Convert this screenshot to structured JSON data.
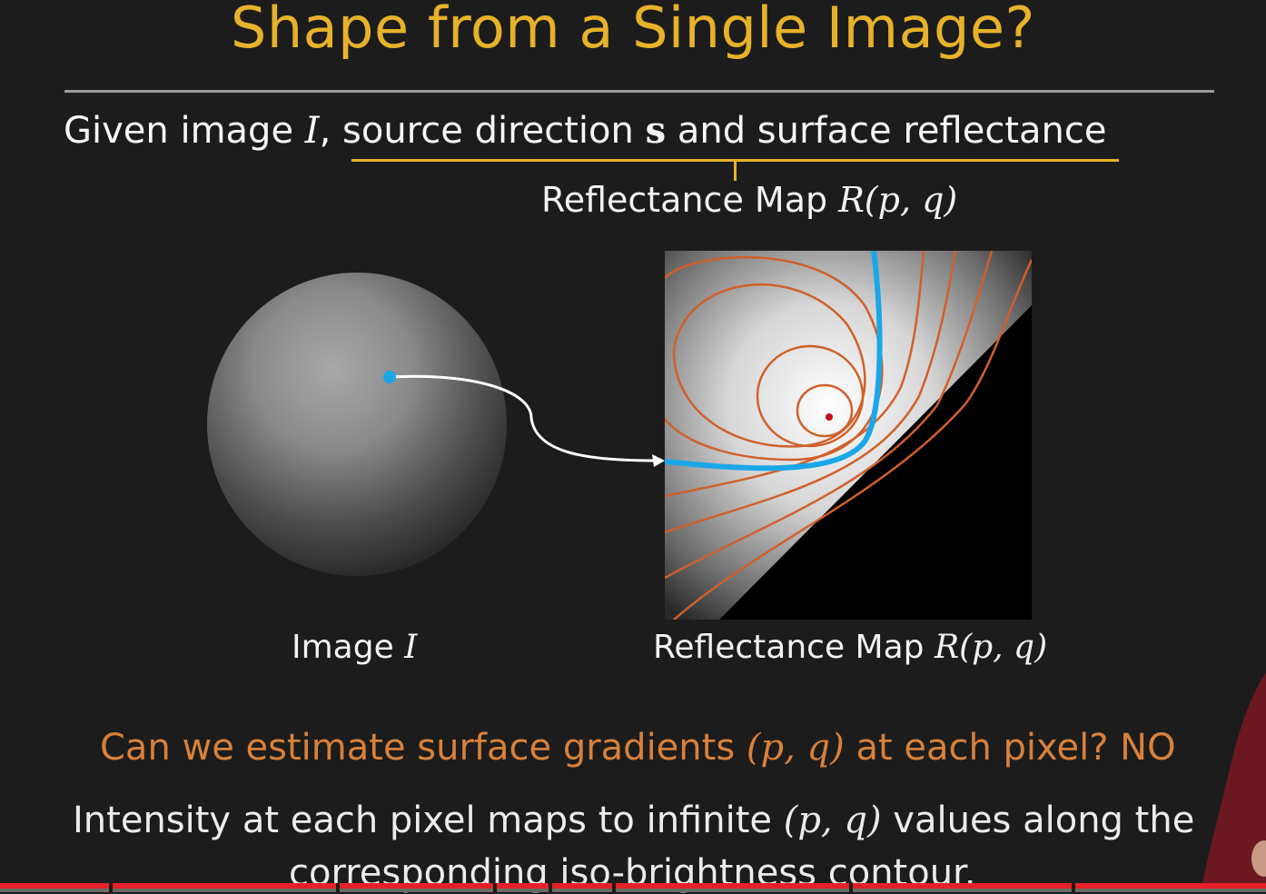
{
  "slide": {
    "title": "Shape from a Single Image?",
    "given": {
      "text_a": "Given image ",
      "var_I": "I",
      "comma": ", ",
      "text_b": "source direction ",
      "var_s": "s",
      "text_c": " and surface reflectance"
    },
    "reflectance_top": {
      "label": "Reflectance Map ",
      "expr": "R(p, q)"
    },
    "caption_image": {
      "label": "Image ",
      "var": "I"
    },
    "caption_map": {
      "label": "Reflectance Map ",
      "expr": "R(p, q)"
    },
    "question": {
      "text_a": "Can we estimate surface gradients ",
      "expr": "(p, q)",
      "text_b": " at each pixel? NO"
    },
    "intensity": {
      "text_a": "Intensity at each pixel maps to infinite ",
      "expr": "(p, q)",
      "text_b": " values along the",
      "line2": "corresponding iso-brightness contour."
    }
  },
  "video": {
    "progress_fraction": 1.0
  },
  "colors": {
    "title": "#e7b22a",
    "brace": "#e7b22a",
    "question": "#d8813a",
    "contour": "#d0602a",
    "highlight_contour": "#1aa7e8",
    "progress": "#e5202a"
  }
}
